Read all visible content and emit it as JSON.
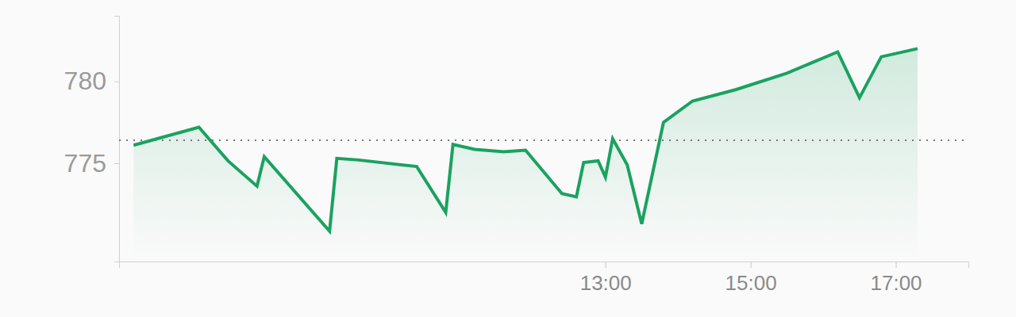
{
  "chart_data": {
    "type": "line",
    "x": [
      6.5,
      7.4,
      7.8,
      8.2,
      8.3,
      9.2,
      9.3,
      9.6,
      10.4,
      10.8,
      10.9,
      11.2,
      11.6,
      11.9,
      12.4,
      12.6,
      12.7,
      12.9,
      13.0,
      13.1,
      13.3,
      13.5,
      13.8,
      14.2,
      14.8,
      15.5,
      16.2,
      16.5,
      16.8,
      17.3
    ],
    "values": [
      776.1,
      777.2,
      775.15,
      773.6,
      775.4,
      770.85,
      775.3,
      775.2,
      774.8,
      772.0,
      776.15,
      775.85,
      775.7,
      775.8,
      773.15,
      772.95,
      775.05,
      775.15,
      774.15,
      776.5,
      774.9,
      771.3,
      777.5,
      778.8,
      779.5,
      780.5,
      781.8,
      779.0,
      781.5,
      782.0
    ],
    "color": "#1aa260",
    "line_style": "solid",
    "reference_value": 776.4,
    "xlim": [
      6.3,
      18
    ],
    "xticks": [
      {
        "value": 13,
        "label": "13:00"
      },
      {
        "value": 15,
        "label": "15:00"
      },
      {
        "value": 17,
        "label": "17:00"
      }
    ],
    "ylim": [
      769,
      784
    ],
    "yticks": [
      775,
      780
    ],
    "grid": false
  }
}
